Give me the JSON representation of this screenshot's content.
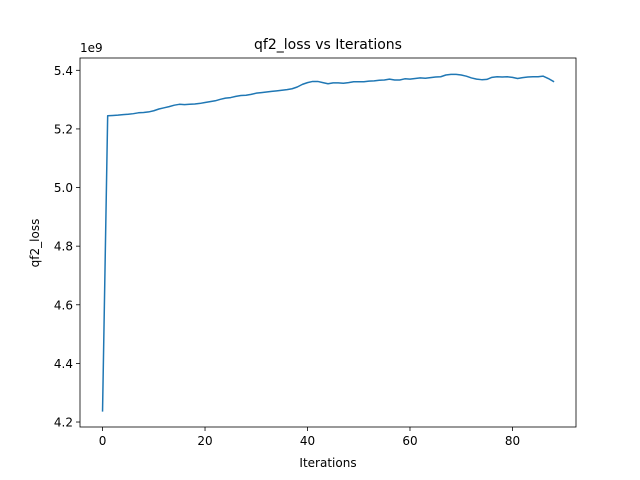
{
  "chart_data": {
    "type": "line",
    "title": "qf2_loss vs Iterations",
    "xlabel": "Iterations",
    "ylabel": "qf2_loss",
    "y_offset_label": "1e9",
    "xlim": [
      -4.4,
      92.4
    ],
    "ylim": [
      4.183,
      5.442
    ],
    "x_ticks": [
      0,
      20,
      40,
      60,
      80
    ],
    "y_ticks": [
      4.2,
      4.4,
      4.6,
      4.8,
      5.0,
      5.2,
      5.4
    ],
    "x_tick_labels": [
      "0",
      "20",
      "40",
      "60",
      "80"
    ],
    "y_tick_labels": [
      "4.2",
      "4.4",
      "4.6",
      "4.8",
      "5.0",
      "5.2",
      "5.4"
    ],
    "grid": false,
    "color": "#1f77b4",
    "series": [
      {
        "x": [
          0,
          1,
          2,
          3,
          4,
          5,
          6,
          7,
          8,
          9,
          10,
          11,
          12,
          13,
          14,
          15,
          16,
          17,
          18,
          19,
          20,
          21,
          22,
          23,
          24,
          25,
          26,
          27,
          28,
          29,
          30,
          31,
          32,
          33,
          34,
          35,
          36,
          37,
          38,
          39,
          40,
          41,
          42,
          43,
          44,
          45,
          46,
          47,
          48,
          49,
          50,
          51,
          52,
          53,
          54,
          55,
          56,
          57,
          58,
          59,
          60,
          61,
          62,
          63,
          64,
          65,
          66,
          67,
          68,
          69,
          70,
          71,
          72,
          73,
          74,
          75,
          76,
          77,
          78,
          79,
          80,
          81,
          82,
          83,
          84,
          85,
          86,
          87,
          88
        ],
        "values": [
          4.238,
          5.245,
          5.246,
          5.247,
          5.249,
          5.25,
          5.252,
          5.255,
          5.256,
          5.258,
          5.262,
          5.268,
          5.272,
          5.276,
          5.281,
          5.284,
          5.283,
          5.284,
          5.285,
          5.287,
          5.29,
          5.293,
          5.296,
          5.301,
          5.305,
          5.307,
          5.311,
          5.314,
          5.315,
          5.318,
          5.322,
          5.324,
          5.326,
          5.328,
          5.33,
          5.332,
          5.334,
          5.337,
          5.343,
          5.352,
          5.358,
          5.362,
          5.362,
          5.358,
          5.354,
          5.357,
          5.357,
          5.356,
          5.358,
          5.361,
          5.361,
          5.361,
          5.363,
          5.364,
          5.366,
          5.367,
          5.37,
          5.367,
          5.367,
          5.371,
          5.37,
          5.372,
          5.374,
          5.373,
          5.375,
          5.377,
          5.378,
          5.384,
          5.386,
          5.386,
          5.384,
          5.38,
          5.374,
          5.37,
          5.368,
          5.369,
          5.376,
          5.378,
          5.377,
          5.378,
          5.376,
          5.372,
          5.375,
          5.377,
          5.378,
          5.378,
          5.38,
          5.372,
          5.362
        ]
      }
    ]
  }
}
